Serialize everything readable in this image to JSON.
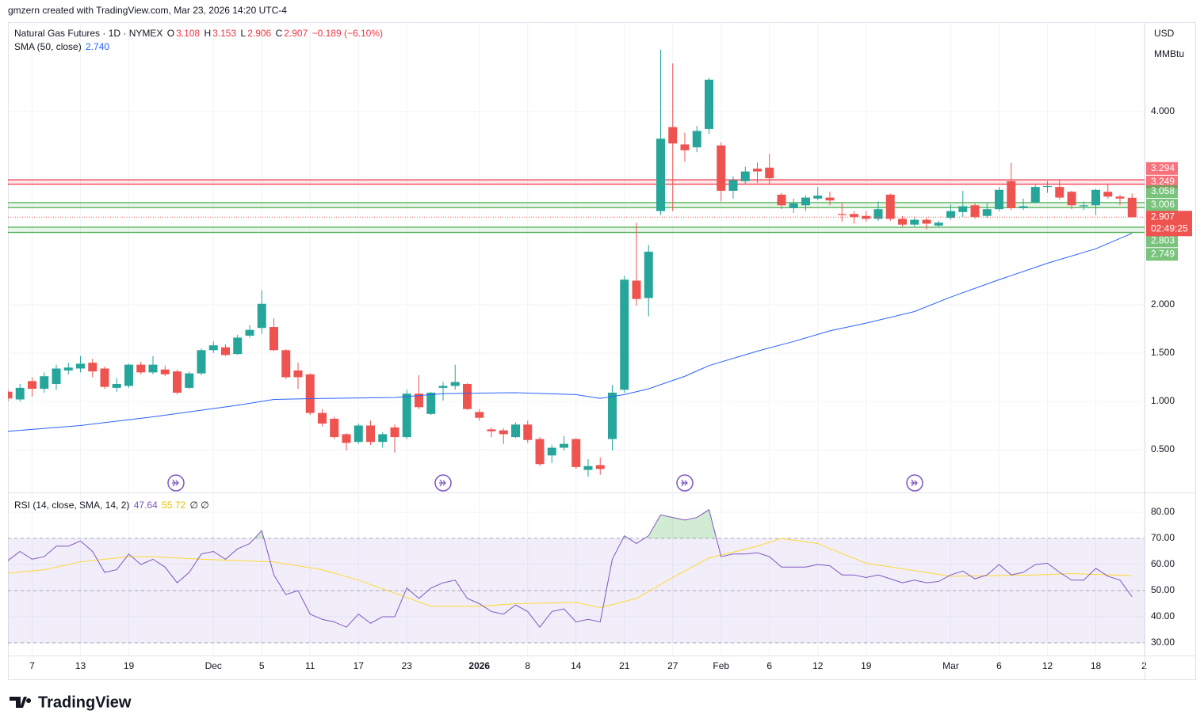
{
  "header": "gmzern created with TradingView.com, Mar 23, 2026 14:20 UTC-4",
  "footer": "TradingView",
  "chart_data": [
    {
      "type": "candlestick",
      "title": "Natural Gas Futures · 1D · NYMEX",
      "legend_keys": [
        "O",
        "H",
        "L",
        "C"
      ],
      "change": "−0.189 (−6.10%)",
      "currency": "USD",
      "unit": "MMBtu",
      "up_color": "#26a69a",
      "down_color": "#ef5350",
      "candles": {
        "open": [
          1.1,
          1.02,
          1.21,
          1.13,
          1.18,
          1.32,
          1.34,
          1.4,
          1.34,
          1.14,
          1.16,
          1.38,
          1.3,
          1.33,
          1.31,
          1.14,
          1.29,
          1.53,
          1.56,
          1.49,
          1.68,
          1.76,
          1.77,
          1.53,
          1.32,
          1.28,
          0.88,
          0.82,
          0.66,
          0.58,
          0.75,
          0.58,
          0.73,
          0.63,
          1.08,
          0.87,
          1.14,
          1.16,
          1.18,
          0.89,
          0.71,
          0.7,
          0.63,
          0.76,
          0.61,
          0.44,
          0.52,
          0.61,
          0.29,
          0.34,
          0.61,
          1.12,
          2.25,
          2.07,
          2.97,
          3.84,
          3.66,
          3.63,
          3.82,
          3.65,
          3.18,
          3.28,
          3.41,
          3.42,
          3.14,
          3.0,
          3.03,
          3.1,
          3.11,
          2.94,
          2.94,
          2.92,
          2.89,
          3.14,
          2.89,
          2.83,
          2.88,
          2.82,
          2.9,
          2.96,
          3.03,
          2.92,
          2.99,
          3.28,
          3.0,
          3.06,
          3.22,
          3.22,
          3.17,
          3.02,
          3.03,
          3.17,
          3.12,
          3.108
        ],
        "high": [
          1.12,
          1.18,
          1.25,
          1.3,
          1.38,
          1.4,
          1.47,
          1.44,
          1.36,
          1.24,
          1.39,
          1.41,
          1.47,
          1.37,
          1.33,
          1.31,
          1.55,
          1.62,
          1.59,
          1.69,
          1.79,
          2.15,
          1.86,
          1.54,
          1.4,
          1.29,
          0.92,
          0.84,
          0.67,
          0.77,
          0.8,
          0.68,
          0.76,
          1.12,
          1.27,
          1.1,
          1.2,
          1.38,
          1.19,
          0.92,
          0.73,
          0.72,
          0.78,
          0.8,
          0.63,
          0.55,
          0.64,
          0.62,
          0.4,
          0.42,
          1.17,
          2.3,
          2.85,
          2.62,
          4.64,
          4.5,
          3.78,
          3.85,
          4.35,
          3.68,
          3.33,
          3.43,
          3.47,
          3.56,
          3.16,
          3.1,
          3.13,
          3.22,
          3.17,
          3.05,
          2.97,
          2.97,
          3.07,
          3.15,
          2.92,
          2.91,
          2.9,
          2.87,
          3.04,
          3.18,
          3.05,
          3.06,
          3.22,
          3.47,
          3.1,
          3.24,
          3.28,
          3.29,
          3.18,
          3.07,
          3.2,
          3.25,
          3.14,
          3.153
        ],
        "low": [
          1.0,
          1.0,
          1.05,
          1.09,
          1.12,
          1.28,
          1.3,
          1.25,
          1.13,
          1.1,
          1.14,
          1.28,
          1.28,
          1.26,
          1.07,
          1.13,
          1.27,
          1.5,
          1.47,
          1.48,
          1.66,
          1.7,
          1.52,
          1.23,
          1.13,
          0.86,
          0.74,
          0.61,
          0.49,
          0.56,
          0.55,
          0.52,
          0.47,
          0.61,
          0.92,
          0.86,
          1.01,
          1.12,
          0.91,
          0.8,
          0.63,
          0.56,
          0.62,
          0.57,
          0.33,
          0.36,
          0.49,
          0.3,
          0.22,
          0.24,
          0.49,
          1.09,
          1.99,
          1.88,
          2.93,
          2.97,
          3.48,
          3.58,
          3.77,
          3.07,
          3.1,
          3.25,
          3.26,
          3.25,
          2.99,
          2.95,
          2.97,
          3.08,
          3.03,
          2.86,
          2.84,
          2.86,
          2.87,
          2.87,
          2.81,
          2.81,
          2.78,
          2.8,
          2.88,
          2.91,
          2.89,
          2.9,
          2.97,
          2.98,
          2.98,
          3.05,
          3.16,
          3.09,
          2.99,
          2.98,
          2.93,
          3.1,
          3.03,
          2.906
        ],
        "close": [
          1.03,
          1.14,
          1.13,
          1.26,
          1.34,
          1.35,
          1.39,
          1.31,
          1.15,
          1.18,
          1.38,
          1.3,
          1.38,
          1.28,
          1.09,
          1.29,
          1.53,
          1.58,
          1.48,
          1.66,
          1.74,
          2.01,
          1.53,
          1.25,
          1.25,
          0.88,
          0.77,
          0.63,
          0.57,
          0.75,
          0.58,
          0.66,
          0.63,
          1.08,
          0.94,
          1.09,
          1.16,
          1.2,
          0.92,
          0.83,
          0.69,
          0.66,
          0.76,
          0.6,
          0.35,
          0.52,
          0.56,
          0.32,
          0.33,
          0.3,
          1.09,
          2.26,
          2.06,
          2.55,
          3.72,
          3.67,
          3.6,
          3.8,
          4.33,
          3.18,
          3.29,
          3.38,
          3.38,
          3.31,
          3.03,
          3.05,
          3.11,
          3.13,
          3.08,
          2.93,
          2.91,
          2.89,
          2.99,
          2.89,
          2.83,
          2.88,
          2.84,
          2.85,
          2.97,
          3.02,
          2.91,
          2.99,
          3.19,
          3.0,
          3.02,
          3.22,
          3.23,
          3.11,
          3.03,
          3.03,
          3.19,
          3.12,
          3.1,
          2.907
        ]
      },
      "sma": {
        "name": "SMA (50, close)",
        "value_label": "2.740",
        "color": "#2962ff",
        "x": [
          0,
          6,
          12,
          19,
          22,
          26,
          32,
          36,
          42,
          47,
          49,
          51,
          53,
          56,
          58,
          62,
          65,
          68,
          71,
          75,
          78,
          82,
          86,
          90,
          93
        ],
        "values": [
          0.69,
          0.75,
          0.84,
          0.96,
          1.02,
          1.03,
          1.04,
          1.08,
          1.09,
          1.07,
          1.03,
          1.07,
          1.13,
          1.26,
          1.37,
          1.52,
          1.62,
          1.73,
          1.81,
          1.93,
          2.08,
          2.26,
          2.43,
          2.58,
          2.74
        ]
      },
      "levels": [
        {
          "values": [
            3.294,
            3.249
          ],
          "color": "#f23645"
        },
        {
          "values": [
            3.058,
            3.006
          ],
          "color": "#4caf50"
        },
        {
          "values": [
            2.803,
            2.749
          ],
          "color": "#4caf50"
        }
      ],
      "countdown": "02:49:25",
      "ylim": [
        0.057,
        4.926
      ],
      "yticks": [
        {
          "value": 0.5,
          "label": "0.500"
        },
        {
          "value": 1,
          "label": "1.000"
        },
        {
          "value": 1.5,
          "label": "1.500"
        },
        {
          "value": 2,
          "label": "2.000"
        },
        {
          "value": 4,
          "label": "4.000"
        }
      ],
      "xticks": [
        {
          "value": 2,
          "label": "7"
        },
        {
          "value": 6,
          "label": "13"
        },
        {
          "value": 10,
          "label": "19"
        },
        {
          "value": 17,
          "label": "Dec"
        },
        {
          "value": 21,
          "label": "5"
        },
        {
          "value": 25,
          "label": "11"
        },
        {
          "value": 29,
          "label": "17"
        },
        {
          "value": 33,
          "label": "23"
        },
        {
          "value": 39,
          "label": "2026",
          "bold": true
        },
        {
          "value": 43,
          "label": "8"
        },
        {
          "value": 47,
          "label": "14"
        },
        {
          "value": 51,
          "label": "21"
        },
        {
          "value": 55,
          "label": "27"
        },
        {
          "value": 59,
          "label": "Feb"
        },
        {
          "value": 63,
          "label": "6"
        },
        {
          "value": 67,
          "label": "12"
        },
        {
          "value": 71,
          "label": "19"
        },
        {
          "value": 78,
          "label": "Mar"
        },
        {
          "value": 82,
          "label": "6"
        },
        {
          "value": 86,
          "label": "12"
        },
        {
          "value": 90,
          "label": "18"
        },
        {
          "value": 94,
          "label": "2"
        }
      ],
      "grid": true
    },
    {
      "type": "line",
      "title": "RSI (14, close, SMA, 14, 2)",
      "extra": "∅ ∅",
      "series": [
        {
          "color": "#7e57c2",
          "values": [
            61.5,
            65,
            62,
            63,
            67,
            67,
            69,
            65,
            57,
            58,
            64,
            60,
            62,
            59,
            53,
            57,
            64,
            65,
            62,
            66,
            68,
            73,
            56,
            48.5,
            50,
            41,
            39,
            38,
            36,
            41,
            37.5,
            40,
            40,
            51,
            47,
            51,
            53,
            54,
            47,
            45,
            42,
            41,
            44.5,
            42,
            36,
            42,
            43,
            38,
            39,
            38,
            62,
            71,
            68,
            71,
            79,
            78,
            77,
            78,
            81,
            63,
            64,
            64,
            64.5,
            63,
            59,
            59,
            59,
            60,
            59.5,
            56,
            56,
            55,
            56,
            54.5,
            53,
            54,
            53,
            53.5,
            56,
            57.5,
            54.5,
            56,
            60,
            56,
            57,
            60,
            60.5,
            57,
            54,
            54,
            58.5,
            55.5,
            54,
            47.64
          ]
        },
        {
          "color": "#fdd835",
          "x": [
            0,
            3,
            6,
            10,
            12,
            16,
            19,
            22,
            26,
            29,
            32,
            35,
            39,
            42,
            47,
            49,
            52,
            55,
            58,
            62,
            64,
            67,
            71,
            78,
            85,
            88,
            93
          ],
          "values": [
            56.7,
            58,
            61,
            63,
            63,
            62,
            61.5,
            61,
            58,
            54,
            49,
            44,
            44,
            45,
            45.5,
            43.5,
            47,
            55,
            62.5,
            67,
            70,
            68,
            60.5,
            55.5,
            56,
            56.5,
            55.72
          ]
        }
      ],
      "band": [
        30,
        70
      ],
      "band_color": "#7e57c2",
      "midline": 50,
      "overbought_fill": "#4caf50",
      "ylim": [
        25.15,
        87.27
      ],
      "yticks": [
        {
          "value": 30,
          "label": "30.00"
        },
        {
          "value": 40,
          "label": "40.00"
        },
        {
          "value": 50,
          "label": "50.00"
        },
        {
          "value": 60,
          "label": "60.00"
        },
        {
          "value": 70,
          "label": "70.00"
        },
        {
          "value": 80,
          "label": "80.00"
        }
      ],
      "grid": true
    }
  ]
}
